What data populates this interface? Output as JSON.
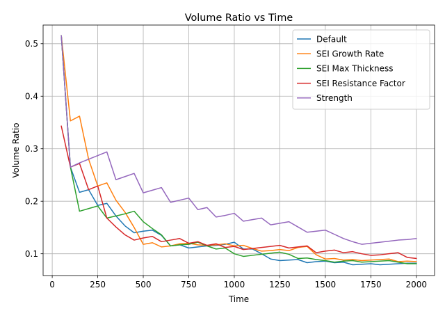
{
  "chart_data": {
    "type": "line",
    "title": "Volume Ratio vs Time",
    "xlabel": "Time",
    "ylabel": "Volume Ratio",
    "xlim": [
      -50,
      2100
    ],
    "ylim": [
      0.0585,
      0.5355
    ],
    "xticks": [
      0,
      250,
      500,
      750,
      1000,
      1250,
      1500,
      1750,
      2000
    ],
    "yticks": [
      0.1,
      0.2,
      0.3,
      0.4,
      0.5
    ],
    "xtick_labels": [
      "0",
      "250",
      "500",
      "750",
      "1000",
      "1250",
      "1500",
      "1750",
      "2000"
    ],
    "ytick_labels": [
      "0.1",
      "0.2",
      "0.3",
      "0.4",
      "0.5"
    ],
    "grid": true,
    "legend_position": "top-right",
    "x": [
      50,
      100,
      150,
      200,
      250,
      300,
      350,
      400,
      450,
      500,
      550,
      600,
      650,
      700,
      750,
      800,
      850,
      900,
      950,
      1000,
      1050,
      1100,
      1150,
      1200,
      1250,
      1300,
      1350,
      1400,
      1450,
      1500,
      1550,
      1600,
      1650,
      1700,
      1750,
      1800,
      1850,
      1900,
      1950,
      2000
    ],
    "series": [
      {
        "name": "Default",
        "color": "#1f77b4",
        "values": [
          0.515,
          0.265,
          0.217,
          0.222,
          0.192,
          0.196,
          0.172,
          0.153,
          0.14,
          0.143,
          0.145,
          0.135,
          0.115,
          0.117,
          0.111,
          0.113,
          0.115,
          0.116,
          0.118,
          0.122,
          0.109,
          0.109,
          0.1,
          0.09,
          0.087,
          0.088,
          0.089,
          0.083,
          0.085,
          0.086,
          0.083,
          0.084,
          0.079,
          0.08,
          0.081,
          0.079,
          0.08,
          0.081,
          0.082,
          0.082
        ]
      },
      {
        "name": "SEI Growth Rate",
        "color": "#ff7f0e",
        "values": [
          0.515,
          0.353,
          0.362,
          0.28,
          0.229,
          0.235,
          0.202,
          0.179,
          0.15,
          0.118,
          0.121,
          0.113,
          0.115,
          0.119,
          0.12,
          0.117,
          0.116,
          0.117,
          0.119,
          0.115,
          0.116,
          0.11,
          0.105,
          0.106,
          0.108,
          0.106,
          0.112,
          0.114,
          0.098,
          0.09,
          0.091,
          0.088,
          0.089,
          0.087,
          0.088,
          0.089,
          0.09,
          0.085,
          0.086,
          0.085
        ]
      },
      {
        "name": "SEI Max Thickness",
        "color": "#2ca02c",
        "values": [
          0.515,
          0.265,
          0.181,
          0.186,
          0.191,
          0.168,
          0.172,
          0.176,
          0.181,
          0.161,
          0.148,
          0.136,
          0.115,
          0.117,
          0.118,
          0.122,
          0.115,
          0.109,
          0.111,
          0.1,
          0.095,
          0.097,
          0.099,
          0.101,
          0.103,
          0.099,
          0.091,
          0.092,
          0.089,
          0.087,
          0.084,
          0.086,
          0.087,
          0.084,
          0.085,
          0.086,
          0.087,
          0.084,
          0.081,
          0.081
        ]
      },
      {
        "name": "SEI Resistance Factor",
        "color": "#d62728",
        "values": [
          0.343,
          0.265,
          0.272,
          0.222,
          0.229,
          0.168,
          0.151,
          0.136,
          0.126,
          0.13,
          0.133,
          0.123,
          0.126,
          0.129,
          0.12,
          0.123,
          0.116,
          0.119,
          0.112,
          0.114,
          0.108,
          0.11,
          0.112,
          0.114,
          0.116,
          0.111,
          0.113,
          0.115,
          0.102,
          0.105,
          0.107,
          0.102,
          0.104,
          0.1,
          0.097,
          0.098,
          0.1,
          0.102,
          0.093,
          0.091
        ]
      },
      {
        "name": "Strength",
        "color": "#9467bd",
        "values": [
          0.515,
          0.265,
          0.273,
          0.28,
          0.287,
          0.294,
          0.241,
          0.247,
          0.253,
          0.216,
          0.221,
          0.226,
          0.198,
          0.202,
          0.206,
          0.184,
          0.188,
          0.17,
          0.173,
          0.177,
          0.162,
          0.165,
          0.168,
          0.155,
          0.158,
          0.161,
          0.151,
          0.141,
          0.143,
          0.145,
          0.137,
          0.129,
          0.123,
          0.118,
          0.12,
          0.122,
          0.124,
          0.126,
          0.127,
          0.129
        ]
      }
    ]
  }
}
